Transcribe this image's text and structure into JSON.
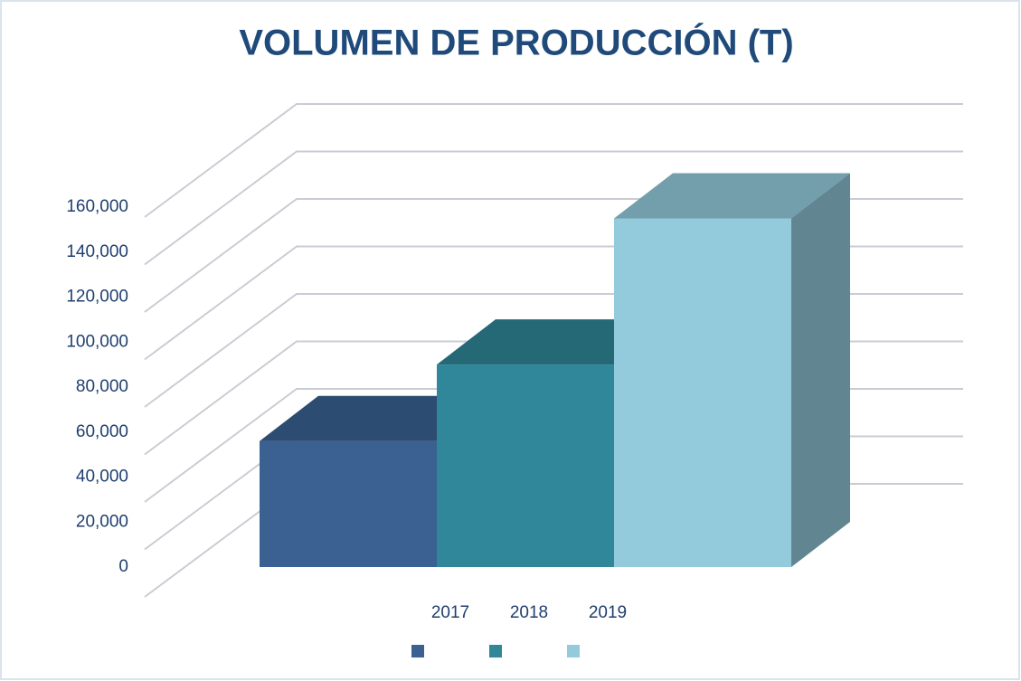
{
  "chart_data": {
    "type": "bar3d",
    "title": "VOLUMEN DE PRODUCCIÓN (T)",
    "categories": [
      "2017",
      "2018",
      "2019"
    ],
    "values": [
      56000,
      90000,
      155000
    ],
    "colors": [
      "#3a6191",
      "#2f8799",
      "#93cbdc"
    ],
    "ylim": [
      0,
      160000
    ],
    "yticks": [
      0,
      {
        "value": 20000,
        "label": "20,000"
      },
      {
        "value": 40000,
        "label": "40,000"
      },
      {
        "value": 60000,
        "label": "60,000"
      },
      {
        "value": 80000,
        "label": "80,000"
      },
      {
        "value": 100000,
        "label": "100,000"
      },
      {
        "value": 120000,
        "label": "120,000"
      },
      {
        "value": 140000,
        "label": "140,000"
      },
      {
        "value": 160000,
        "label": "160,000"
      }
    ],
    "grid": true
  }
}
